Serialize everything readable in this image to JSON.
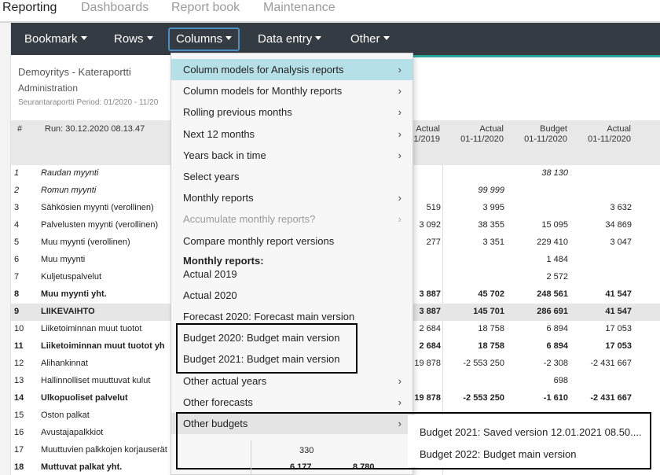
{
  "top_tabs": [
    "Reporting",
    "Dashboards",
    "Report book",
    "Maintenance"
  ],
  "navbar": [
    "Bookmark",
    "Rows",
    "Columns",
    "Data entry",
    "Other"
  ],
  "report": {
    "company": "Demoyritys - Kateraportti",
    "subtitle": "Administration",
    "period": "Seurantaraportti Period: 01/2020 - 11/20"
  },
  "table": {
    "hash": "#",
    "run": "Run: 30.12.2020 08.13.47",
    "columns": [
      {
        "line1": "Actual",
        "line2": "1/2019"
      },
      {
        "line1": "Actual",
        "line2": "01-11/2020"
      },
      {
        "line1": "Budget",
        "line2": "01-11/2020"
      },
      {
        "line1": "Actual",
        "line2": "01-11/2020"
      }
    ],
    "rows": [
      {
        "num": "1",
        "label": "Raudan myynti",
        "style": "italic",
        "cells": [
          "",
          "",
          "38 130",
          ""
        ]
      },
      {
        "num": "2",
        "label": "Romun myynti",
        "style": "italic",
        "cells": [
          "",
          "99 999",
          "",
          ""
        ]
      },
      {
        "num": "3",
        "label": "Sähkösien myynti (verollinen)",
        "style": "",
        "cells": [
          "519",
          "3 995",
          "",
          "3 632"
        ]
      },
      {
        "num": "4",
        "label": "Palvelusten myynti (verollinen)",
        "style": "",
        "cells": [
          "3 092",
          "38 355",
          "15 095",
          "34 869"
        ]
      },
      {
        "num": "5",
        "label": "Muu myynti (verollinen)",
        "style": "",
        "cells": [
          "277",
          "3 351",
          "229 410",
          "3 047"
        ]
      },
      {
        "num": "6",
        "label": "Muu myynti",
        "style": "",
        "cells": [
          "",
          "",
          "1 484",
          ""
        ]
      },
      {
        "num": "7",
        "label": "Kuljetuspalvelut",
        "style": "",
        "cells": [
          "",
          "",
          "2 572",
          ""
        ]
      },
      {
        "num": "8",
        "label": "Muu myynti yht.",
        "style": "bold",
        "cells": [
          "3 887",
          "45 702",
          "248 561",
          "41 547"
        ]
      },
      {
        "num": "9",
        "label": "LIIKEVAIHTO",
        "style": "bold shaded",
        "cells": [
          "3 887",
          "145 701",
          "286 691",
          "41 547"
        ]
      },
      {
        "num": "10",
        "label": "Liiketoiminnan muut tuotot",
        "style": "",
        "cells": [
          "2 684",
          "18 758",
          "6 894",
          "17 053"
        ]
      },
      {
        "num": "11",
        "label": "Liiketoiminnan muut tuotot yh",
        "style": "bold",
        "cells": [
          "2 684",
          "18 758",
          "6 894",
          "17 053"
        ]
      },
      {
        "num": "12",
        "label": "Alihankinnat",
        "style": "",
        "cells": [
          "19 878",
          "-2 553 250",
          "-2 308",
          "-2 431 667"
        ]
      },
      {
        "num": "13",
        "label": "Hallinnolliset muuttuvat kulut",
        "style": "",
        "cells": [
          "",
          "",
          "698",
          ""
        ]
      },
      {
        "num": "14",
        "label": "Ulkopuoliset palvelut",
        "style": "bold",
        "cells": [
          "19 878",
          "-2 553 250",
          "-1 610",
          "-2 431 667"
        ]
      },
      {
        "num": "15",
        "label": "Oston palkat",
        "style": "",
        "cells": [
          "",
          "",
          "",
          ""
        ]
      },
      {
        "num": "16",
        "label": "Avustajapalkkiot",
        "style": "",
        "cells": [
          "",
          "",
          "",
          ""
        ]
      },
      {
        "num": "17",
        "label": "Muuttuvien palkkojen korjauserät",
        "style": "",
        "cells": [
          "",
          "",
          "",
          ""
        ]
      },
      {
        "num": "18",
        "label": "Muttuvat palkat yht.",
        "style": "bold",
        "cells": [
          "",
          "",
          "",
          ""
        ]
      }
    ],
    "under_menu": {
      "v1": "330",
      "v2": "6 177",
      "v3": "8 780"
    }
  },
  "menu": [
    {
      "label": "Column models for Analysis reports",
      "arrow": true,
      "state": "highlight"
    },
    {
      "label": "Column models for Monthly reports",
      "arrow": true,
      "state": ""
    },
    {
      "label": "Rolling previous months",
      "arrow": true,
      "state": ""
    },
    {
      "label": "Next 12 months",
      "arrow": true,
      "state": ""
    },
    {
      "label": "Years back in time",
      "arrow": true,
      "state": ""
    },
    {
      "label": "Select years",
      "arrow": false,
      "state": ""
    },
    {
      "label": "Monthly reports",
      "arrow": true,
      "state": ""
    },
    {
      "label": "Accumulate monthly reports?",
      "arrow": true,
      "state": "disabled"
    },
    {
      "label": "Compare monthly report versions",
      "arrow": false,
      "state": ""
    },
    {
      "label": "Monthly reports:",
      "arrow": false,
      "state": "heading"
    },
    {
      "label": "Actual 2019",
      "arrow": false,
      "state": ""
    },
    {
      "label": "Actual 2020",
      "arrow": false,
      "state": ""
    },
    {
      "label": "Forecast 2020: Forecast main version",
      "arrow": false,
      "state": ""
    },
    {
      "label": "Budget 2020: Budget main version",
      "arrow": false,
      "state": ""
    },
    {
      "label": "Budget 2021: Budget main version",
      "arrow": false,
      "state": ""
    },
    {
      "label": "Other actual years",
      "arrow": true,
      "state": ""
    },
    {
      "label": "Other forecasts",
      "arrow": true,
      "state": ""
    },
    {
      "label": "Other budgets",
      "arrow": true,
      "state": "hover"
    }
  ],
  "submenu": [
    "Budget 2021: Saved version 12.01.2021 08.50....",
    "Budget 2022: Budget main version"
  ]
}
